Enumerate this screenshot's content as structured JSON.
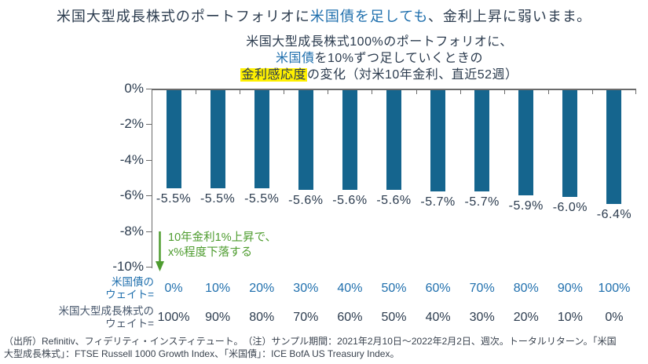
{
  "colors": {
    "navy": "#2B3B4E",
    "accent_blue": "#1F6FAD",
    "highlight_yellow": "#FFF000",
    "green": "#4E9C2F",
    "bar_color": "#15658E",
    "axis_gray": "#6B6B6B",
    "label_gray": "#46566B",
    "footer_gray": "#39424E"
  },
  "title": {
    "pre": "米国大型成長株式のポートフォリオに",
    "accent": "米国債を足しても",
    "post": "、金利上昇に弱いまま。"
  },
  "subtitle": {
    "line1": "米国大型成長株式100%のポートフォリオに、",
    "line2_accent": "米国債",
    "line2_rest": "を10%ずつ足していくときの",
    "line3_highlight": "金利感応度",
    "line3_rest": "の変化（対米10年金利、直近52週）"
  },
  "chart_data": {
    "type": "bar",
    "title": "米国大型成長株式100%のポートフォリオに、米国債を10%ずつ足していくときの金利感応度の変化（対米10年金利、直近52週）",
    "xlabel": "",
    "ylabel": "",
    "ylim": [
      -10,
      0
    ],
    "grid": false,
    "y_ticks": [
      "0%",
      "-2%",
      "-4%",
      "-6%",
      "-8%",
      "-10%"
    ],
    "categories_bond_weight": [
      "0%",
      "10%",
      "20%",
      "30%",
      "40%",
      "50%",
      "60%",
      "70%",
      "80%",
      "90%",
      "100%"
    ],
    "categories_equity_weight": [
      "100%",
      "90%",
      "80%",
      "70%",
      "60%",
      "50%",
      "40%",
      "30%",
      "20%",
      "10%",
      "0%"
    ],
    "values": [
      -5.5,
      -5.5,
      -5.5,
      -5.6,
      -5.6,
      -5.6,
      -5.7,
      -5.7,
      -5.9,
      -6.0,
      -6.4
    ],
    "bar_labels": [
      "-5.5%",
      "-5.5%",
      "-5.5%",
      "-5.6%",
      "-5.6%",
      "-5.6%",
      "-5.7%",
      "-5.7%",
      "-5.9%",
      "-6.0%",
      "-6.4%"
    ],
    "annotation": {
      "line1": "10年金利1%上昇で、",
      "line2": "x%程度下落する"
    }
  },
  "axis_rows": {
    "bond": {
      "label_line1": "米国債の",
      "label_line2": "ウェイト="
    },
    "equity": {
      "label_line1": "米国大型成長株式の",
      "label_line2": "ウェイト="
    }
  },
  "footer": {
    "line1": "（出所）Refinitiv、フィデリティ・インスティテュート。　（注）サンプル期間：2021年2月10日～2022年2月2日、週次。トータルリターン。「米国",
    "line2": "大型成長株式」：FTSE Russell 1000 Growth Index、「米国債」：ICE BofA US Treasury Index。"
  }
}
